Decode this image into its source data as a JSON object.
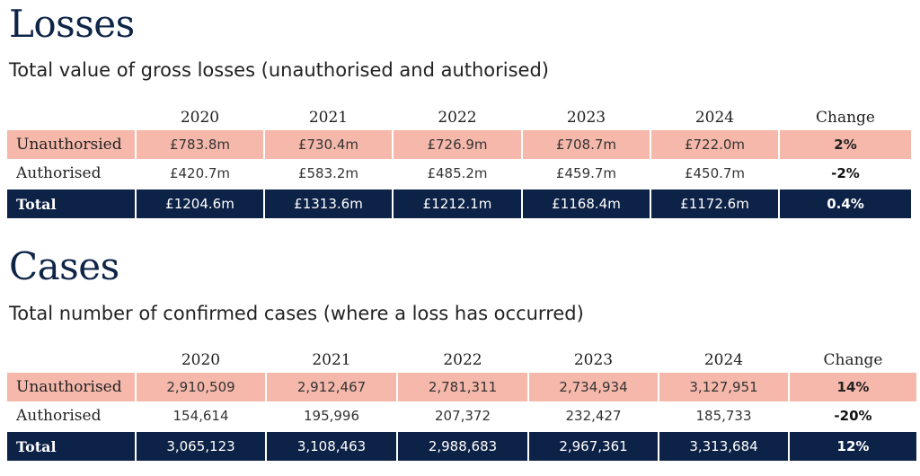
{
  "losses": {
    "heading": "Losses",
    "subtitle": "Total value of gross losses (unauthorised and authorised)",
    "columns": [
      "2020",
      "2021",
      "2022",
      "2023",
      "2024",
      "Change"
    ],
    "rows": [
      {
        "label": "Unauthorsied",
        "values": [
          "£783.8m",
          "£730.4m",
          "£726.9m",
          "£708.7m",
          "£722.0m"
        ],
        "change": "2%"
      },
      {
        "label": "Authorised",
        "values": [
          "£420.7m",
          "£583.2m",
          "£485.2m",
          "£459.7m",
          "£450.7m"
        ],
        "change": "-2%"
      },
      {
        "label": "Total",
        "values": [
          "£1204.6m",
          "£1313.6m",
          "£1212.1m",
          "£1168.4m",
          "£1172.6m"
        ],
        "change": "0.4%"
      }
    ]
  },
  "cases": {
    "heading": "Cases",
    "subtitle": "Total number of confirmed cases (where a loss has occurred)",
    "columns": [
      "2020",
      "2021",
      "2022",
      "2023",
      "2024",
      "Change"
    ],
    "rows": [
      {
        "label": "Unauthorised",
        "values": [
          "2,910,509",
          "2,912,467",
          "2,781,311",
          "2,734,934",
          "3,127,951"
        ],
        "change": "14%"
      },
      {
        "label": "Authorised",
        "values": [
          "154,614",
          "195,996",
          "207,372",
          "232,427",
          "185,733"
        ],
        "change": "-20%"
      },
      {
        "label": "Total",
        "values": [
          "3,065,123",
          "3,108,463",
          "2,988,683",
          "2,967,361",
          "3,313,684"
        ],
        "change": "12%"
      }
    ]
  },
  "colors": {
    "heading": "#0f2548",
    "unauthorised_row": "#f5b8ab",
    "total_row": "#0d2247"
  }
}
